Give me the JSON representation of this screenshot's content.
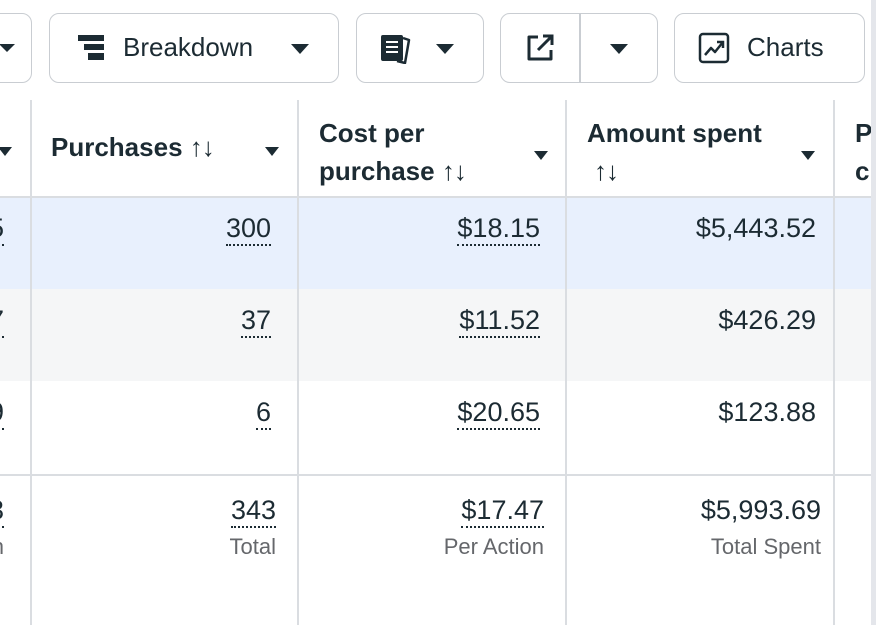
{
  "toolbar": {
    "breakdown_label": "Breakdown",
    "charts_label": "Charts"
  },
  "table": {
    "columns": [
      {
        "label": "Purchases",
        "sort_glyph": "↑↓"
      },
      {
        "label": "Cost per purchase",
        "line1": "Cost per",
        "line2": "purchase",
        "sort_glyph": "↑↓"
      },
      {
        "label": "Amount spent",
        "line1": "Amount spent",
        "sort_glyph": "↑↓"
      },
      {
        "label": "P",
        "line1": "P",
        "line2": "c"
      }
    ],
    "rows": [
      {
        "left_fragment": "5",
        "purchases": "300",
        "cost_per_purchase": "$18.15",
        "amount_spent": "$5,443.52",
        "highlighted": true
      },
      {
        "left_fragment": "7",
        "purchases": "37",
        "cost_per_purchase": "$11.52",
        "amount_spent": "$426.29",
        "highlighted": false
      },
      {
        "left_fragment": "9",
        "purchases": "6",
        "cost_per_purchase": "$20.65",
        "amount_spent": "$123.88",
        "highlighted": false
      }
    ],
    "totals": {
      "left_fragment": "3",
      "left_sub": "n",
      "purchases": "343",
      "purchases_sub": "Total",
      "cost_per_purchase": "$17.47",
      "cost_sub": "Per Action",
      "amount_spent": "$5,993.69",
      "amount_sub": "Total Spent"
    }
  },
  "colors": {
    "highlight_row": "#e8f0fd",
    "alt_row": "#f5f6f7",
    "border": "#dadde1",
    "text": "#1c2b33",
    "muted": "#65676b"
  }
}
